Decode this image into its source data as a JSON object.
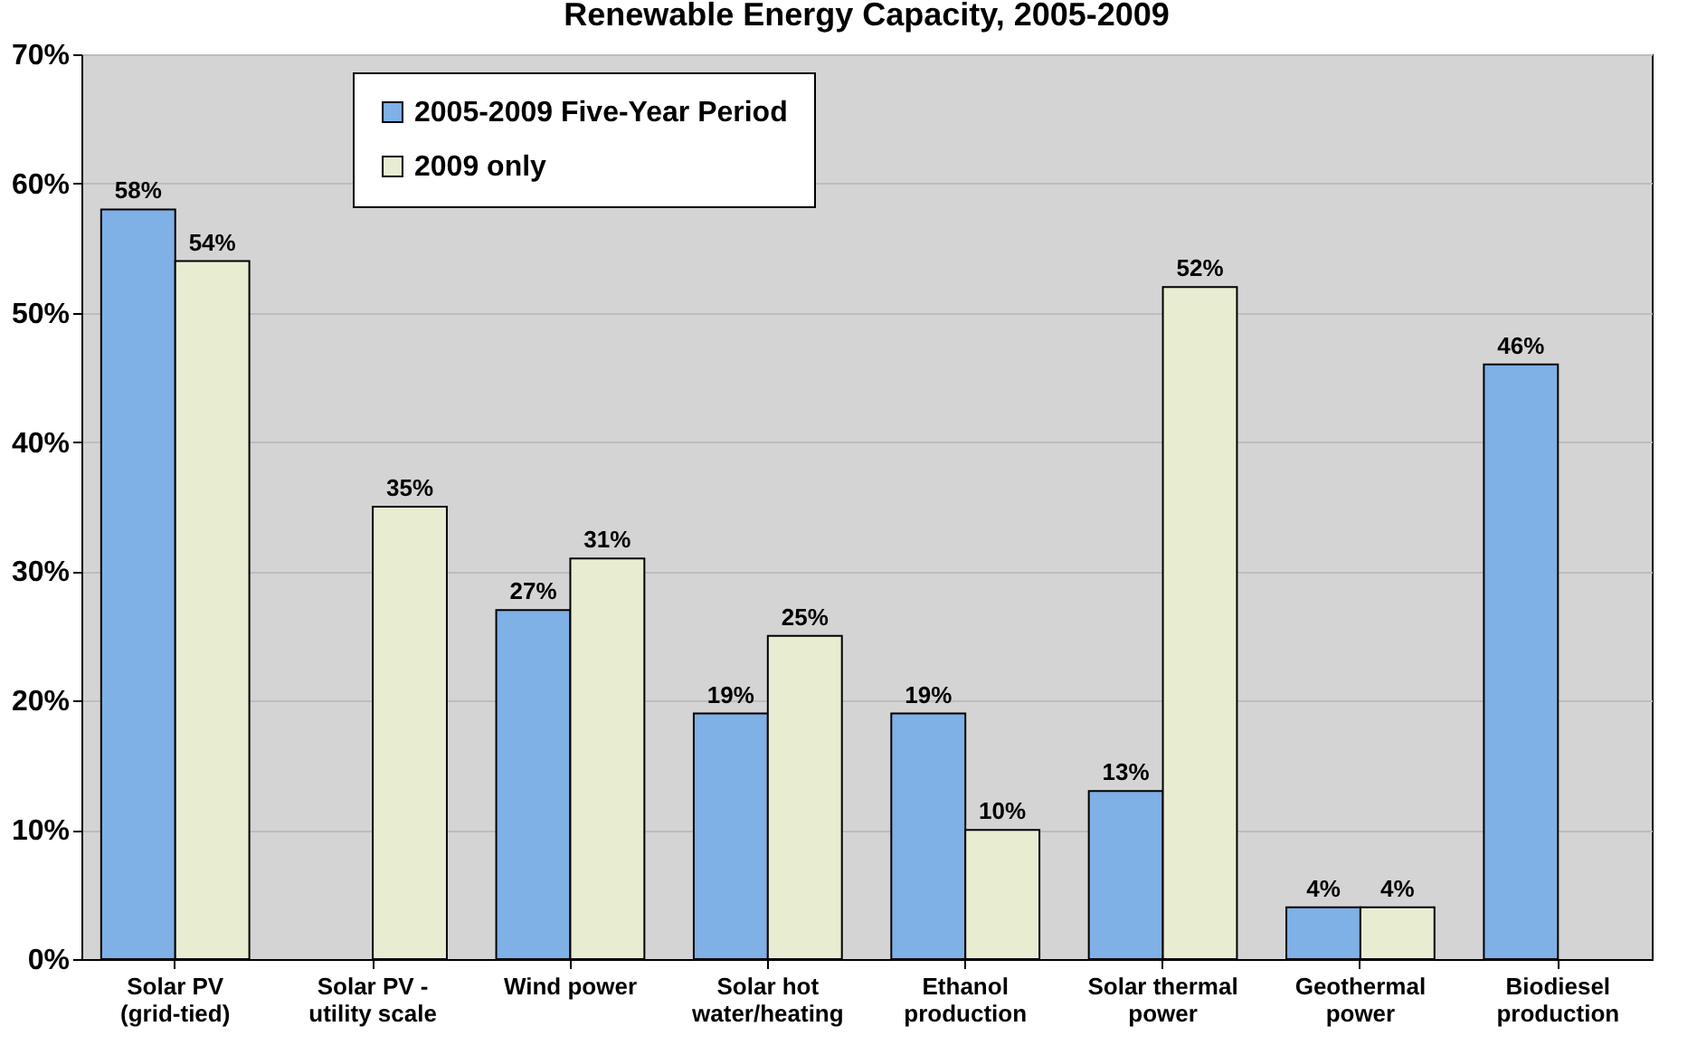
{
  "chart_data": {
    "type": "bar",
    "title": "Renewable Energy Capacity, 2005-2009",
    "categories": [
      "Solar PV\n(grid-tied)",
      "Solar PV -\nutility scale",
      "Wind power",
      "Solar hot\nwater/heating",
      "Ethanol\nproduction",
      "Solar thermal\npower",
      "Geothermal\npower",
      "Biodiesel\nproduction"
    ],
    "series": [
      {
        "name": "2005-2009 Five-Year Period",
        "color": "#7fb0e6",
        "values": [
          58,
          null,
          27,
          19,
          19,
          13,
          4,
          46
        ],
        "value_labels": [
          "58%",
          null,
          "27%",
          "19%",
          "19%",
          "13%",
          "4%",
          "46%"
        ]
      },
      {
        "name": "2009 only",
        "color": "#e8edd2",
        "values": [
          54,
          35,
          31,
          25,
          10,
          52,
          4,
          null
        ],
        "value_labels": [
          "54%",
          "35%",
          "31%",
          "25%",
          "10%",
          "52%",
          "4%",
          null
        ]
      }
    ],
    "ylim": [
      0,
      70
    ],
    "yticks": [
      {
        "value": 0,
        "label": "0%"
      },
      {
        "value": 10,
        "label": "10%"
      },
      {
        "value": 20,
        "label": "20%"
      },
      {
        "value": 30,
        "label": "30%"
      },
      {
        "value": 40,
        "label": "40%"
      },
      {
        "value": 50,
        "label": "50%"
      },
      {
        "value": 60,
        "label": "60%"
      },
      {
        "value": 70,
        "label": "70%"
      }
    ],
    "grid": "y",
    "legend": "top left"
  }
}
